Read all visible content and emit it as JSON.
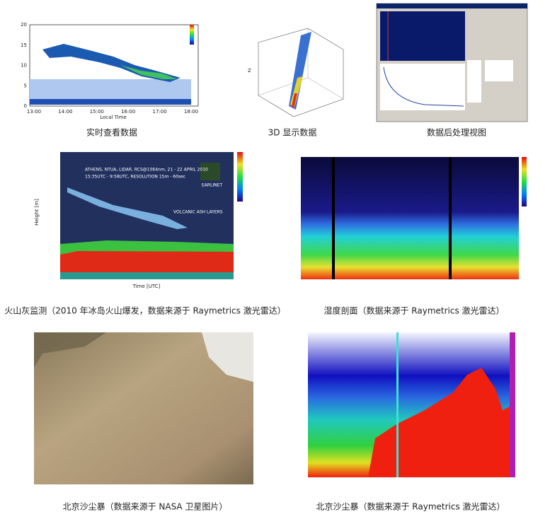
{
  "panels": [
    {
      "caption": "实时查看数据",
      "yticks": [
        "0",
        "5",
        "10",
        "15",
        "20"
      ],
      "xticks": [
        "13:00",
        "14:00",
        "15:00",
        "16:00",
        "17:00",
        "18:00"
      ],
      "xlabel": "Local Time"
    },
    {
      "caption": "3D 显示数据",
      "zlabel": "Z"
    },
    {
      "caption": "数据后处理视图"
    },
    {
      "caption": "火山灰监测（2010 年冰岛火山爆发，数据来源于 Raymetrics 激光雷达）",
      "title": "ATHENS, NTUA, LIDAR, RCS@1064nm, 21 - 22 APRIL 2010",
      "subtitle": "15:35UTC - 9:58UTC, RESOLUTION 15m - 60sec",
      "badge": "EARLINET",
      "annotation": "VOLCANIC ASH LAYERS",
      "xlabel": "Time [UTC]",
      "ylabel": "Height [m]"
    },
    {
      "caption": "湿度剖面（数据来源于 Raymetrics 激光雷达）"
    },
    {
      "caption": "北京沙尘暴（数据来源于 NASA 卫星图片）"
    },
    {
      "caption": "北京沙尘暴（数据来源于 Raymetrics 激光雷达）"
    }
  ]
}
